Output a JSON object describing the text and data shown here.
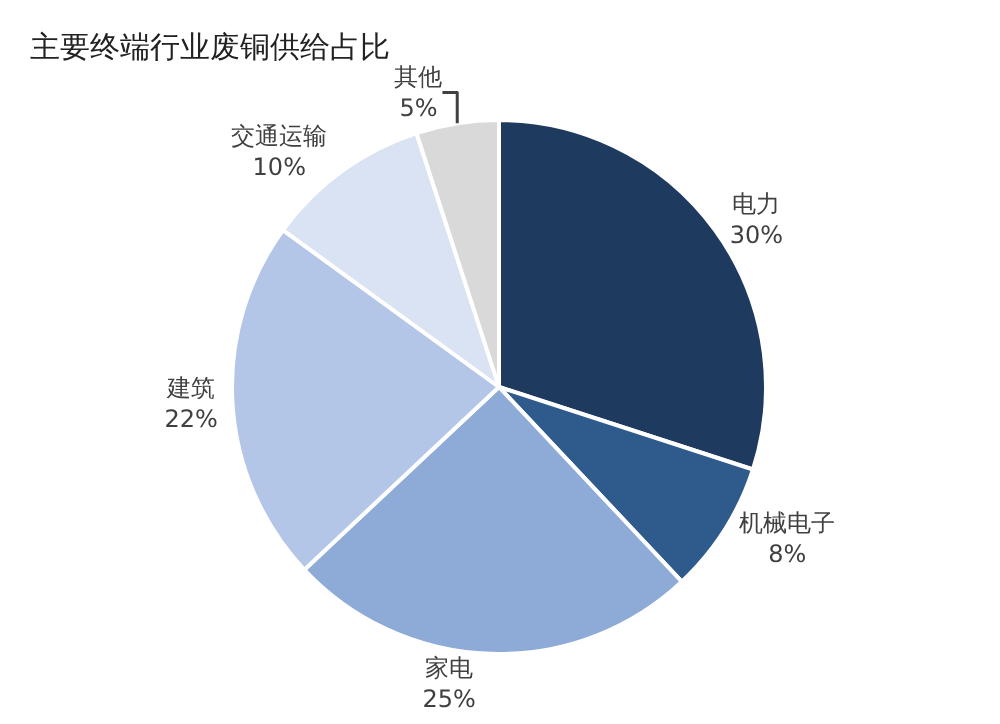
{
  "chart_data": {
    "type": "pie",
    "title": "主要终端行业废铜供给占比",
    "categories": [
      "电力",
      "机械电子",
      "家电",
      "建筑",
      "交通运输",
      "其他"
    ],
    "values": [
      30,
      8,
      25,
      22,
      10,
      5
    ],
    "colors": [
      "#1f3a5f",
      "#2e5a8c",
      "#8eaad6",
      "#b4c6e7",
      "#dae3f3",
      "#d9d9d9"
    ],
    "value_labels": [
      "30%",
      "8%",
      "25%",
      "22%",
      "10%",
      "5%"
    ],
    "legend": false
  }
}
